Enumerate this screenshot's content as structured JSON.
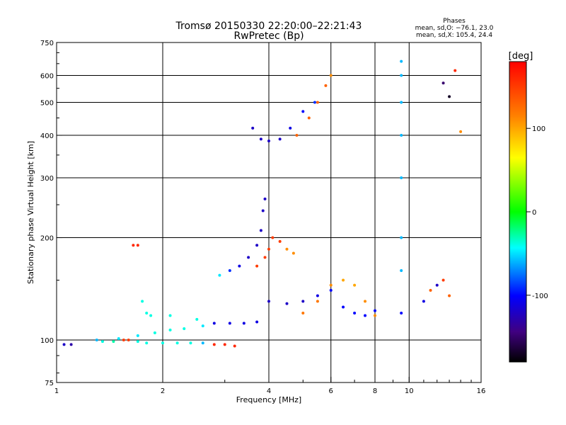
{
  "chart_data": {
    "type": "scatter",
    "title": "Tromsø 20150330 22:20:00–22:21:43",
    "subtitle": "RwPretec (Bp)",
    "xlabel": "Frequency [MHz]",
    "ylabel": "Stationary phase Virtual Height [km]",
    "x_scale": "log",
    "y_scale": "log",
    "xlim": [
      1,
      16
    ],
    "ylim": [
      75,
      750
    ],
    "x_ticks": [
      1,
      2,
      4,
      6,
      8,
      10,
      16
    ],
    "y_ticks": [
      75,
      100,
      200,
      300,
      400,
      500,
      600,
      750
    ],
    "x_gridlines": [
      2,
      4,
      6,
      8,
      10
    ],
    "y_gridlines": [
      100,
      200,
      300,
      400,
      500,
      600
    ],
    "grid": true,
    "legend": {
      "title": "Phases",
      "lines": [
        "mean, sd,O: −76.1, 23.0",
        "mean, sd,X: 105.4, 24.4"
      ],
      "placement": "top-right"
    },
    "colorbar": {
      "label": "[deg]",
      "range": [
        -180,
        180
      ],
      "ticks": [
        100,
        0,
        -100
      ],
      "colors": [
        "#ff0000",
        "#ff8000",
        "#ffff00",
        "#00ff00",
        "#00ffff",
        "#0000ff",
        "#400080",
        "#000000"
      ]
    },
    "series": [
      {
        "points": [
          [
            1.05,
            97,
            -120
          ],
          [
            1.1,
            97,
            -130
          ],
          [
            1.35,
            99,
            -40
          ],
          [
            1.45,
            99,
            -30
          ],
          [
            1.55,
            100,
            150
          ],
          [
            1.6,
            100,
            150
          ],
          [
            1.7,
            99,
            -40
          ],
          [
            1.8,
            98,
            -40
          ],
          [
            2.0,
            98,
            -40
          ],
          [
            2.2,
            98,
            -40
          ],
          [
            2.4,
            98,
            -40
          ],
          [
            2.6,
            98,
            -60
          ],
          [
            2.8,
            97,
            160
          ],
          [
            3.0,
            97,
            160
          ],
          [
            3.2,
            96,
            160
          ]
        ]
      },
      {
        "points": [
          [
            1.3,
            100,
            -60
          ],
          [
            1.5,
            101,
            -50
          ],
          [
            1.7,
            103,
            -50
          ],
          [
            1.9,
            105,
            -40
          ],
          [
            2.1,
            107,
            -40
          ],
          [
            2.3,
            108,
            -40
          ],
          [
            2.6,
            110,
            -50
          ],
          [
            2.8,
            112,
            -110
          ],
          [
            3.1,
            112,
            -110
          ],
          [
            3.4,
            112,
            -110
          ],
          [
            3.7,
            113,
            -110
          ]
        ]
      },
      {
        "points": [
          [
            1.75,
            130,
            -40
          ],
          [
            1.8,
            120,
            -40
          ],
          [
            1.85,
            118,
            -40
          ],
          [
            2.1,
            118,
            -40
          ],
          [
            2.5,
            115,
            -40
          ]
        ]
      },
      {
        "points": [
          [
            1.65,
            190,
            160
          ],
          [
            1.7,
            190,
            160
          ]
        ]
      },
      {
        "points": [
          [
            2.9,
            155,
            -50
          ],
          [
            3.1,
            160,
            -90
          ],
          [
            3.3,
            165,
            -110
          ],
          [
            3.5,
            175,
            -120
          ],
          [
            3.7,
            190,
            -120
          ],
          [
            3.8,
            210,
            -120
          ],
          [
            3.85,
            240,
            -120
          ],
          [
            3.9,
            260,
            -120
          ]
        ]
      },
      {
        "points": [
          [
            3.7,
            165,
            150
          ],
          [
            3.9,
            175,
            150
          ],
          [
            4.0,
            185,
            150
          ],
          [
            4.1,
            200,
            150
          ],
          [
            4.3,
            195,
            150
          ],
          [
            4.5,
            185,
            110
          ],
          [
            4.7,
            180,
            110
          ]
        ]
      },
      {
        "points": [
          [
            3.6,
            420,
            -120
          ],
          [
            3.8,
            390,
            -120
          ],
          [
            4.0,
            385,
            -120
          ],
          [
            4.3,
            390,
            -120
          ],
          [
            4.6,
            420,
            -110
          ],
          [
            5.0,
            470,
            -100
          ],
          [
            5.4,
            500,
            -90
          ]
        ]
      },
      {
        "points": [
          [
            4.8,
            400,
            130
          ],
          [
            5.2,
            450,
            130
          ],
          [
            5.5,
            500,
            130
          ],
          [
            5.8,
            560,
            130
          ],
          [
            6.0,
            600,
            110
          ]
        ]
      },
      {
        "points": [
          [
            4.0,
            130,
            -120
          ],
          [
            4.5,
            128,
            -120
          ],
          [
            5.0,
            130,
            -120
          ],
          [
            5.5,
            135,
            -110
          ],
          [
            6.0,
            140,
            -100
          ],
          [
            6.5,
            125,
            -100
          ],
          [
            7.0,
            120,
            -100
          ],
          [
            7.5,
            118,
            -100
          ],
          [
            8.0,
            122,
            -100
          ]
        ]
      },
      {
        "points": [
          [
            5.0,
            120,
            120
          ],
          [
            5.5,
            130,
            120
          ],
          [
            6.0,
            145,
            110
          ],
          [
            6.5,
            150,
            100
          ],
          [
            7.0,
            145,
            100
          ],
          [
            7.5,
            130,
            110
          ],
          [
            8.0,
            118,
            110
          ]
        ]
      },
      {
        "points": [
          [
            9.5,
            120,
            -100
          ],
          [
            9.5,
            160,
            -60
          ],
          [
            9.5,
            200,
            -60
          ],
          [
            9.5,
            300,
            -60
          ],
          [
            9.5,
            400,
            -60
          ],
          [
            9.5,
            500,
            -60
          ],
          [
            9.5,
            600,
            -60
          ],
          [
            9.5,
            660,
            -60
          ]
        ]
      },
      {
        "points": [
          [
            11.0,
            130,
            -110
          ],
          [
            11.5,
            140,
            130
          ],
          [
            12.0,
            145,
            -120
          ],
          [
            12.5,
            150,
            150
          ],
          [
            13.0,
            135,
            130
          ]
        ]
      },
      {
        "points": [
          [
            12.5,
            570,
            -150
          ],
          [
            13.0,
            520,
            -170
          ],
          [
            13.5,
            620,
            160
          ],
          [
            14.0,
            410,
            110
          ]
        ]
      }
    ]
  }
}
